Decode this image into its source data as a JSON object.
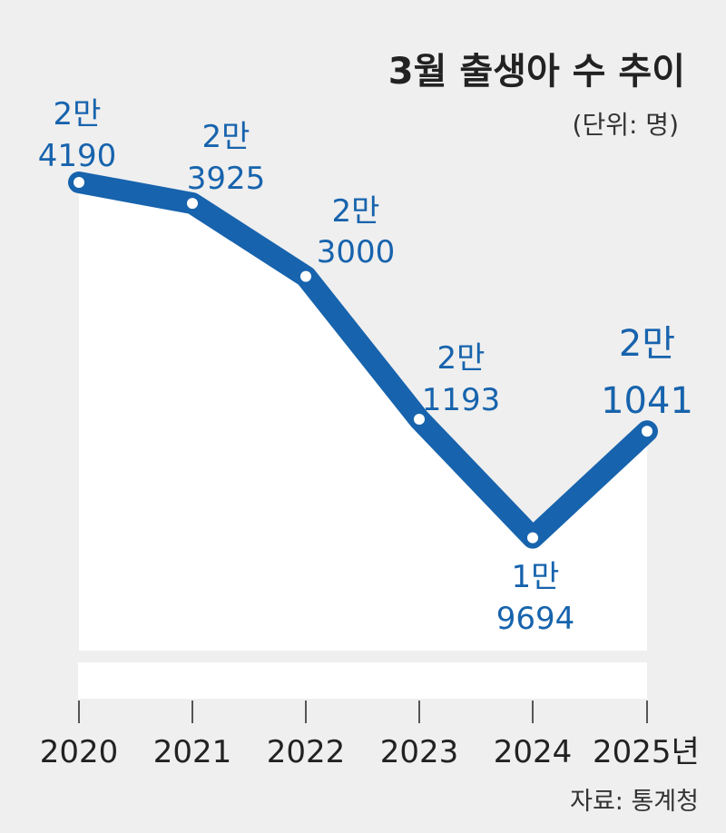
{
  "chart_data": {
    "type": "line",
    "title": "3월 출생아 수 추이",
    "unit_label": "(단위: 명)",
    "source": "자료: 통계청",
    "x": [
      "2020",
      "2021",
      "2022",
      "2023",
      "2024",
      "2025년"
    ],
    "values": [
      24190,
      23925,
      23000,
      21193,
      19694,
      21041
    ],
    "data_labels": [
      [
        "2만",
        "4190"
      ],
      [
        "2만",
        "3925"
      ],
      [
        "2만",
        "3000"
      ],
      [
        "2만",
        "1193"
      ],
      [
        "1만",
        "9694"
      ],
      [
        "2만",
        "1041"
      ]
    ],
    "ylim": [
      19000,
      25000
    ],
    "grid": false,
    "line_color": "#1763ad",
    "area_color": "#ffffff"
  }
}
